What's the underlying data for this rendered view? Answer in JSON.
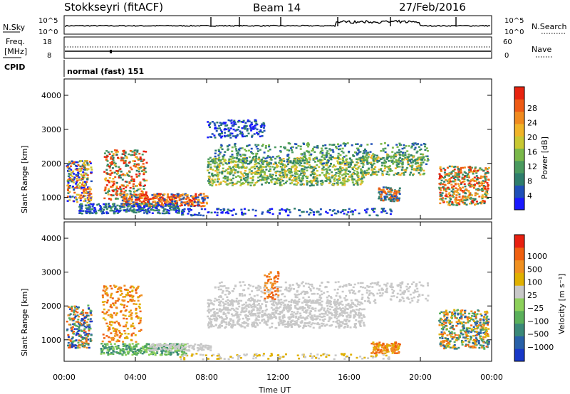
{
  "header": {
    "station": "Stokkseyri (fitACF)",
    "beam": "Beam 14",
    "date": "27/Feb/2016"
  },
  "panels": {
    "noise": {
      "left_label": "N.Sky",
      "right_label": "N.Search",
      "left_ticks": [
        "10^5",
        "10^0"
      ],
      "right_ticks": [
        "10^5",
        "10^0"
      ]
    },
    "freq": {
      "left_label_1": "Freq.",
      "left_label_2": "[MHz]",
      "right_label": "Nave",
      "left_ticks": [
        "18",
        "8"
      ],
      "right_ticks": [
        "60",
        "0"
      ]
    },
    "cpid": {
      "label": "CPID",
      "text": "normal (fast) 151"
    }
  },
  "chart_data": [
    {
      "type": "heatmap",
      "name": "power",
      "ylabel": "Slant Range [km]",
      "yticks": [
        "4000",
        "3000",
        "2000",
        "1000"
      ],
      "colorbar_label": "Power [dB]",
      "colorbar_ticks": [
        "28",
        "24",
        "20",
        "16",
        "12",
        "8",
        "4"
      ],
      "colors": [
        "#1919ff",
        "#1f4fb8",
        "#2e7d6c",
        "#4a9a5e",
        "#7ab84a",
        "#c8c832",
        "#f0b428",
        "#f08a1e",
        "#ee5a14",
        "#e8230f"
      ]
    },
    {
      "type": "heatmap",
      "name": "velocity",
      "ylabel": "Slant Range [km]",
      "yticks": [
        "4000",
        "3000",
        "2000",
        "1000"
      ],
      "colorbar_label": "Velocity [m s⁻¹]",
      "colorbar_ticks": [
        "1000",
        "500",
        "100",
        "25",
        "−25",
        "−100",
        "−500",
        "−1000"
      ],
      "colors": [
        "#1838c8",
        "#2860a8",
        "#3a8878",
        "#5ab05a",
        "#8cd05a",
        "#c8c8c8",
        "#e0b000",
        "#f09020",
        "#f06010",
        "#e82010"
      ]
    }
  ],
  "xaxis": {
    "label": "Time UT",
    "ticks": [
      "00:00",
      "04:00",
      "08:00",
      "12:00",
      "16:00",
      "20:00",
      "00:00"
    ]
  }
}
